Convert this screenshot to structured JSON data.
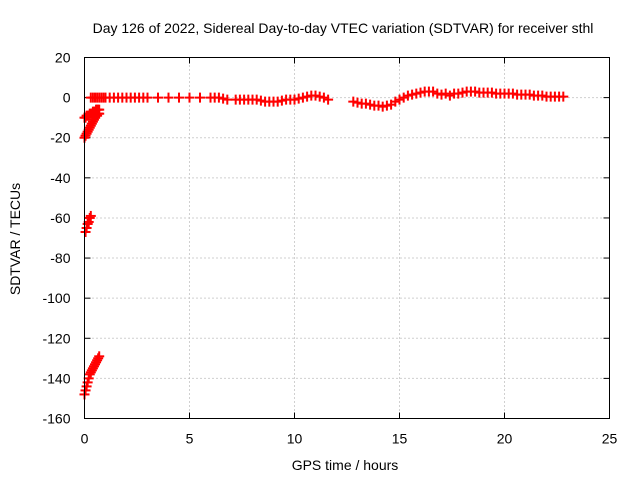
{
  "chart_data": {
    "type": "scatter",
    "title": "Day 126 of 2022, Sidereal Day-to-day VTEC variation (SDTVAR) for receiver sthl",
    "xlabel": "GPS time / hours",
    "ylabel": "SDTVAR / TECUs",
    "xlim": [
      0,
      25
    ],
    "ylim": [
      -160,
      20
    ],
    "xticks": [
      0,
      5,
      10,
      15,
      20,
      25
    ],
    "yticks": [
      -160,
      -140,
      -120,
      -100,
      -80,
      -60,
      -40,
      -20,
      0,
      20
    ],
    "grid": true,
    "marker": "plus",
    "color": "#ff0000",
    "series": [
      {
        "name": "",
        "x": [
          0.0,
          0.05,
          0.1,
          0.15,
          0.2,
          0.25,
          0.3,
          0.35,
          0.4,
          0.45,
          0.5,
          0.55,
          0.6,
          0.65,
          0.7,
          0.05,
          0.1,
          0.15,
          0.2,
          0.25,
          0.3,
          0.0,
          0.05,
          0.1,
          0.15,
          0.2,
          0.25,
          0.3,
          0.35,
          0.4,
          0.45,
          0.5,
          0.55,
          0.6,
          0.65,
          0.7,
          0.0,
          0.05,
          0.1,
          0.15,
          0.2,
          0.25,
          0.3,
          0.35,
          0.4,
          0.45,
          0.5,
          0.55,
          0.6,
          0.65,
          0.7,
          0.3,
          0.4,
          0.5,
          0.6,
          0.7,
          0.8,
          0.9,
          1.0,
          1.2,
          1.4,
          1.6,
          1.8,
          2.0,
          2.2,
          2.4,
          2.6,
          2.8,
          3.0,
          3.5,
          4.0,
          4.5,
          5.0,
          5.5,
          6.0,
          6.2,
          6.4,
          6.6,
          6.8,
          7.2,
          7.4,
          7.6,
          7.8,
          8.0,
          8.2,
          8.4,
          8.6,
          8.8,
          9.0,
          9.2,
          9.4,
          9.6,
          9.8,
          10.0,
          10.2,
          10.4,
          10.6,
          10.8,
          11.0,
          11.2,
          11.4,
          11.6,
          12.8,
          13.0,
          13.2,
          13.4,
          13.6,
          13.8,
          14.0,
          14.2,
          14.4,
          14.6,
          14.8,
          15.0,
          15.2,
          15.4,
          15.6,
          15.8,
          16.0,
          16.2,
          16.4,
          16.6,
          16.8,
          17.0,
          17.2,
          17.4,
          17.6,
          17.8,
          18.0,
          18.2,
          18.4,
          18.6,
          18.8,
          19.0,
          19.2,
          19.4,
          19.6,
          19.8,
          20.0,
          20.2,
          20.4,
          20.6,
          20.8,
          21.0,
          21.2,
          21.4,
          21.6,
          21.8,
          22.0,
          22.2,
          22.4,
          22.6,
          22.8
        ],
        "y": [
          -148,
          -146,
          -144,
          -142,
          -140,
          -138,
          -137,
          -136,
          -135,
          -134,
          -133,
          -132,
          -131,
          -130,
          -129,
          -67,
          -65,
          -63,
          -62,
          -60,
          -59,
          -20,
          -19,
          -18,
          -17,
          -16,
          -15,
          -14,
          -13,
          -12,
          -11,
          -10,
          -9,
          -9,
          -8,
          -8,
          -10,
          -10,
          -9,
          -9,
          -9,
          -8,
          -8,
          -8,
          -7,
          -7,
          -7,
          -6,
          -6,
          -6,
          -6,
          0,
          0,
          0,
          0,
          0,
          0,
          0,
          0,
          0,
          0,
          0,
          0,
          0,
          0,
          0,
          0,
          0,
          0,
          0,
          0,
          0,
          0,
          0,
          0,
          0,
          0,
          -0.5,
          -1,
          -1,
          -1,
          -1,
          -1,
          -1,
          -1,
          -1.5,
          -2,
          -2,
          -2,
          -2,
          -1.5,
          -1,
          -1,
          -1,
          -0.5,
          0,
          0.5,
          1,
          1,
          0.5,
          0,
          -1,
          -2,
          -2.5,
          -3,
          -3,
          -3.5,
          -4,
          -4,
          -4.5,
          -4,
          -3.5,
          -2,
          -1,
          0,
          1,
          1.5,
          2,
          2.5,
          3,
          3,
          3,
          2,
          1.5,
          2,
          1,
          2,
          2,
          2.5,
          3,
          3,
          3,
          2.5,
          2.5,
          2.5,
          2.5,
          2,
          2,
          2,
          2,
          2,
          1.5,
          1.5,
          1.5,
          1.5,
          1,
          1,
          1,
          0.5,
          0.5,
          0.5,
          0.5,
          0.5
        ]
      }
    ]
  }
}
